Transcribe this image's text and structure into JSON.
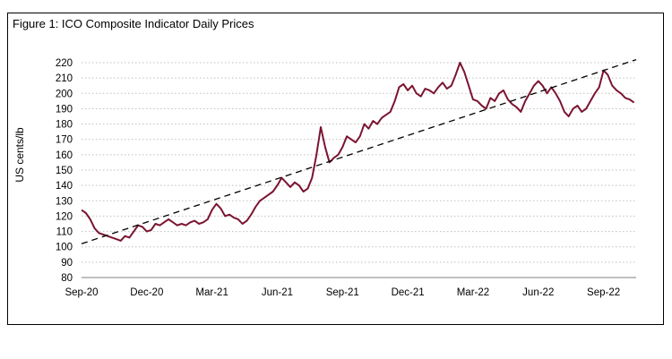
{
  "chart_data": {
    "type": "line",
    "title": "Figure 1: ICO Composite Indicator Daily Prices",
    "xlabel": "",
    "ylabel": "US cents/lb",
    "ylim": [
      80,
      220
    ],
    "yticks": [
      80,
      90,
      100,
      110,
      120,
      130,
      140,
      150,
      160,
      170,
      180,
      190,
      200,
      210,
      220
    ],
    "xlim": [
      0,
      25.5
    ],
    "xticks": [
      {
        "label": "Sep-20",
        "x": 0
      },
      {
        "label": "Dec-20",
        "x": 3
      },
      {
        "label": "Mar-21",
        "x": 6
      },
      {
        "label": "Jun-21",
        "x": 9
      },
      {
        "label": "Sep-21",
        "x": 12
      },
      {
        "label": "Dec-21",
        "x": 15
      },
      {
        "label": "Mar-22",
        "x": 18
      },
      {
        "label": "Jun-22",
        "x": 21
      },
      {
        "label": "Sep-22",
        "x": 24
      }
    ],
    "grid": "horizontal-dotted",
    "colors": {
      "series": "#7b1430",
      "trend": "#000000",
      "grid": "#bfbfbf"
    },
    "series": [
      {
        "name": "ICO Composite Indicator",
        "style": "solid",
        "points": [
          [
            0,
            124
          ],
          [
            0.2,
            122
          ],
          [
            0.4,
            118
          ],
          [
            0.6,
            112
          ],
          [
            0.8,
            109
          ],
          [
            1.0,
            108
          ],
          [
            1.2,
            107
          ],
          [
            1.4,
            106
          ],
          [
            1.6,
            105
          ],
          [
            1.8,
            104
          ],
          [
            2.0,
            107
          ],
          [
            2.2,
            106
          ],
          [
            2.4,
            110
          ],
          [
            2.6,
            114
          ],
          [
            2.8,
            113
          ],
          [
            3.0,
            110
          ],
          [
            3.2,
            111
          ],
          [
            3.4,
            115
          ],
          [
            3.6,
            114
          ],
          [
            3.8,
            116
          ],
          [
            4.0,
            118
          ],
          [
            4.2,
            116
          ],
          [
            4.4,
            114
          ],
          [
            4.6,
            115
          ],
          [
            4.8,
            114
          ],
          [
            5.0,
            116
          ],
          [
            5.2,
            117
          ],
          [
            5.4,
            115
          ],
          [
            5.6,
            116
          ],
          [
            5.8,
            118
          ],
          [
            6.0,
            124
          ],
          [
            6.2,
            128
          ],
          [
            6.4,
            125
          ],
          [
            6.6,
            120
          ],
          [
            6.8,
            121
          ],
          [
            7.0,
            119
          ],
          [
            7.2,
            118
          ],
          [
            7.4,
            115
          ],
          [
            7.6,
            117
          ],
          [
            7.8,
            121
          ],
          [
            8.0,
            126
          ],
          [
            8.2,
            130
          ],
          [
            8.4,
            132
          ],
          [
            8.6,
            134
          ],
          [
            8.8,
            136
          ],
          [
            9.0,
            140
          ],
          [
            9.2,
            145
          ],
          [
            9.4,
            142
          ],
          [
            9.6,
            139
          ],
          [
            9.8,
            142
          ],
          [
            10.0,
            140
          ],
          [
            10.2,
            136
          ],
          [
            10.4,
            138
          ],
          [
            10.6,
            145
          ],
          [
            10.8,
            160
          ],
          [
            11.0,
            178
          ],
          [
            11.2,
            165
          ],
          [
            11.4,
            155
          ],
          [
            11.6,
            158
          ],
          [
            11.8,
            160
          ],
          [
            12.0,
            165
          ],
          [
            12.2,
            172
          ],
          [
            12.4,
            170
          ],
          [
            12.6,
            168
          ],
          [
            12.8,
            172
          ],
          [
            13.0,
            180
          ],
          [
            13.2,
            177
          ],
          [
            13.4,
            182
          ],
          [
            13.6,
            180
          ],
          [
            13.8,
            184
          ],
          [
            14.0,
            186
          ],
          [
            14.2,
            188
          ],
          [
            14.4,
            195
          ],
          [
            14.6,
            204
          ],
          [
            14.8,
            206
          ],
          [
            15.0,
            202
          ],
          [
            15.2,
            205
          ],
          [
            15.4,
            200
          ],
          [
            15.6,
            198
          ],
          [
            15.8,
            203
          ],
          [
            16.0,
            202
          ],
          [
            16.2,
            200
          ],
          [
            16.4,
            204
          ],
          [
            16.6,
            207
          ],
          [
            16.8,
            203
          ],
          [
            17.0,
            205
          ],
          [
            17.2,
            212
          ],
          [
            17.4,
            220
          ],
          [
            17.6,
            214
          ],
          [
            17.8,
            205
          ],
          [
            18.0,
            196
          ],
          [
            18.2,
            195
          ],
          [
            18.4,
            192
          ],
          [
            18.6,
            190
          ],
          [
            18.8,
            197
          ],
          [
            19.0,
            195
          ],
          [
            19.2,
            200
          ],
          [
            19.4,
            202
          ],
          [
            19.6,
            196
          ],
          [
            19.8,
            193
          ],
          [
            20.0,
            191
          ],
          [
            20.2,
            188
          ],
          [
            20.4,
            195
          ],
          [
            20.6,
            200
          ],
          [
            20.8,
            205
          ],
          [
            21.0,
            208
          ],
          [
            21.2,
            205
          ],
          [
            21.4,
            200
          ],
          [
            21.6,
            204
          ],
          [
            21.8,
            200
          ],
          [
            22.0,
            195
          ],
          [
            22.2,
            188
          ],
          [
            22.4,
            185
          ],
          [
            22.6,
            190
          ],
          [
            22.8,
            192
          ],
          [
            23.0,
            188
          ],
          [
            23.2,
            190
          ],
          [
            23.4,
            195
          ],
          [
            23.6,
            200
          ],
          [
            23.8,
            204
          ],
          [
            24.0,
            215
          ],
          [
            24.2,
            212
          ],
          [
            24.4,
            205
          ],
          [
            24.6,
            202
          ],
          [
            24.8,
            200
          ],
          [
            25.0,
            197
          ],
          [
            25.2,
            196
          ],
          [
            25.4,
            194
          ]
        ]
      },
      {
        "name": "Trend",
        "style": "dashed",
        "points": [
          [
            0,
            102
          ],
          [
            25.5,
            222
          ]
        ]
      }
    ]
  }
}
